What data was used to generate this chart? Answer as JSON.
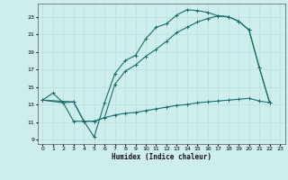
{
  "xlabel": "Humidex (Indice chaleur)",
  "bg_color": "#cdeeed",
  "grid_color": "#b8dede",
  "line_color": "#1a6b6b",
  "xlim": [
    -0.5,
    23.5
  ],
  "ylim": [
    8.5,
    24.5
  ],
  "xticks": [
    0,
    1,
    2,
    3,
    4,
    5,
    6,
    7,
    8,
    9,
    10,
    11,
    12,
    13,
    14,
    15,
    16,
    17,
    18,
    19,
    20,
    21,
    22,
    23
  ],
  "yticks": [
    9,
    11,
    13,
    15,
    17,
    19,
    21,
    23
  ],
  "line1_x": [
    0,
    1,
    2,
    3,
    4,
    5,
    6,
    7,
    8,
    9,
    10,
    11,
    12,
    13,
    14,
    15,
    16,
    17,
    18,
    19,
    20,
    21,
    22
  ],
  "line1_y": [
    13.5,
    14.3,
    13.2,
    11.1,
    11.1,
    9.3,
    13.2,
    16.5,
    18.0,
    18.6,
    20.5,
    21.8,
    22.2,
    23.2,
    23.8,
    23.7,
    23.5,
    23.1,
    23.0,
    22.5,
    21.5,
    17.2,
    13.2
  ],
  "line2_x": [
    0,
    2,
    3,
    4,
    5,
    6,
    7,
    8,
    9,
    10,
    11,
    12,
    13,
    14,
    15,
    16,
    17,
    18,
    19,
    20,
    21,
    22
  ],
  "line2_y": [
    13.5,
    13.2,
    13.3,
    11.1,
    11.1,
    11.5,
    15.3,
    16.8,
    17.5,
    18.5,
    19.3,
    20.2,
    21.2,
    21.8,
    22.4,
    22.8,
    23.1,
    23.0,
    22.5,
    21.5,
    17.2,
    13.2
  ],
  "line3_x": [
    0,
    3,
    4,
    5,
    6,
    7,
    8,
    9,
    10,
    11,
    12,
    13,
    14,
    15,
    16,
    17,
    18,
    19,
    20,
    21,
    22
  ],
  "line3_y": [
    13.5,
    13.3,
    11.1,
    11.1,
    11.5,
    11.8,
    12.0,
    12.1,
    12.3,
    12.5,
    12.7,
    12.9,
    13.0,
    13.2,
    13.3,
    13.4,
    13.5,
    13.6,
    13.7,
    13.4,
    13.2
  ]
}
